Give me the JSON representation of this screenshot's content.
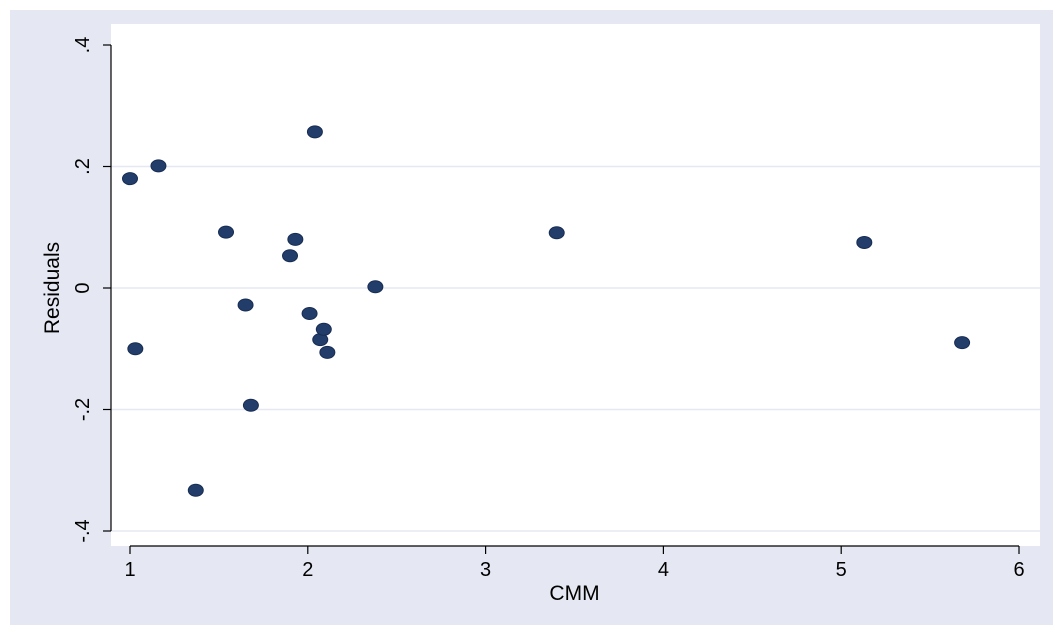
{
  "colors": {
    "background": "#ffffff",
    "outer_region": "#e5e8f2",
    "plot_region": "#ffffff",
    "gridline": "#e5e8f2",
    "marker": "#233d6b",
    "marker_outline": "#172c52",
    "axis": "#000000"
  },
  "chart_data": {
    "type": "scatter",
    "title": "",
    "xlabel": "CMM",
    "ylabel": "Residuals",
    "xlim": [
      1,
      6
    ],
    "ylim": [
      -0.4,
      0.4
    ],
    "x_ticks": [
      1,
      2,
      3,
      4,
      5,
      6
    ],
    "x_tick_labels": [
      "1",
      "2",
      "3",
      "4",
      "5",
      "6"
    ],
    "y_ticks": [
      -0.4,
      -0.2,
      0,
      0.2,
      0.4
    ],
    "y_tick_labels": [
      "-.4",
      "-.2",
      "0",
      ".2",
      ".4"
    ],
    "y_gridlines": [
      -0.4,
      -0.2,
      0,
      0.2
    ],
    "grid": true,
    "legend": "none",
    "points": [
      {
        "x": 1.0,
        "y": 0.18
      },
      {
        "x": 1.03,
        "y": -0.1
      },
      {
        "x": 1.16,
        "y": 0.201
      },
      {
        "x": 1.37,
        "y": -0.333
      },
      {
        "x": 1.54,
        "y": 0.092
      },
      {
        "x": 1.65,
        "y": -0.028
      },
      {
        "x": 1.68,
        "y": -0.193
      },
      {
        "x": 1.9,
        "y": 0.053
      },
      {
        "x": 1.93,
        "y": 0.08
      },
      {
        "x": 2.01,
        "y": -0.042
      },
      {
        "x": 2.04,
        "y": 0.257
      },
      {
        "x": 2.07,
        "y": -0.085
      },
      {
        "x": 2.09,
        "y": -0.068
      },
      {
        "x": 2.11,
        "y": -0.106
      },
      {
        "x": 2.38,
        "y": 0.002
      },
      {
        "x": 3.4,
        "y": 0.091
      },
      {
        "x": 5.13,
        "y": 0.075
      },
      {
        "x": 5.68,
        "y": -0.09
      }
    ]
  }
}
